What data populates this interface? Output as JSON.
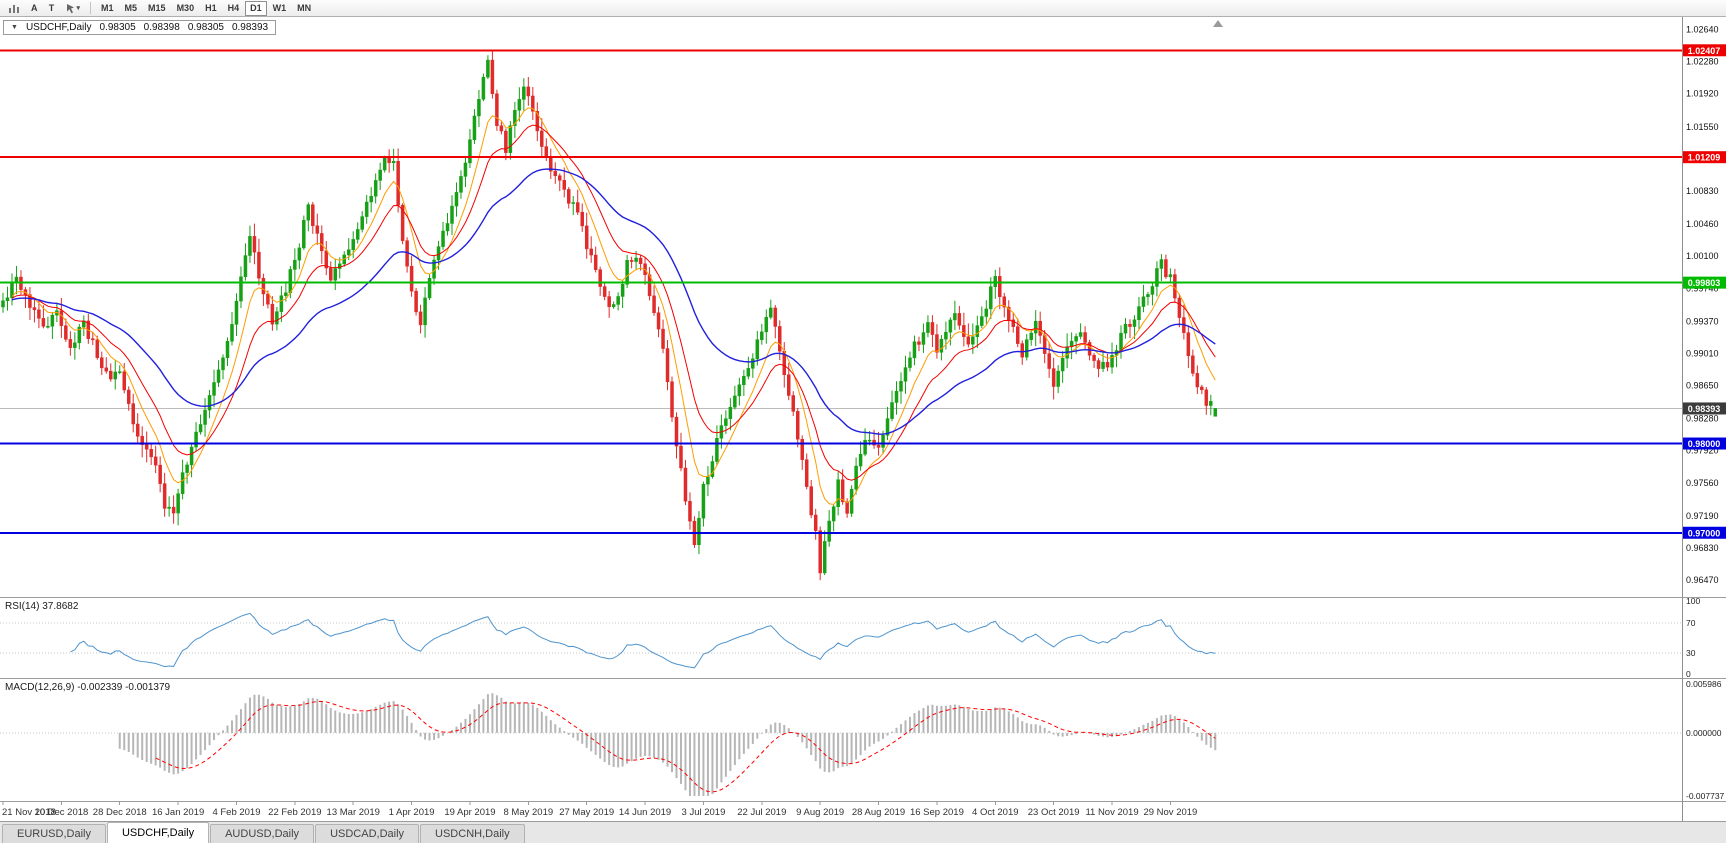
{
  "toolbar": {
    "a_label": "A",
    "t_label": "T",
    "timeframes": [
      "M1",
      "M5",
      "M15",
      "M30",
      "H1",
      "H4",
      "D1",
      "W1",
      "MN"
    ],
    "active_timeframe": "D1"
  },
  "chart_header": {
    "arrow": "▼",
    "symbol": "USDCHF,Daily",
    "open": "0.98305",
    "high": "0.98398",
    "low": "0.98305",
    "close": "0.98393"
  },
  "colors": {
    "candle_up": "#16a016",
    "candle_down": "#e02b2b",
    "rsi_line": "#4f94cd",
    "macd_hist": "#b6b6b6",
    "macd_signal": "#ff0000",
    "current_price_bg": "#3b3b3b",
    "separator": "#9c9c9c"
  },
  "price_axis": [
    "1.02640",
    "1.02280",
    "1.01920",
    "1.01550",
    "1.01190",
    "1.00830",
    "1.00460",
    "1.00100",
    "0.99740",
    "0.99370",
    "0.99010",
    "0.98650",
    "0.98280",
    "0.97920",
    "0.97560",
    "0.97190",
    "0.96830",
    "0.96470"
  ],
  "hlines": [
    {
      "price": 1.02407,
      "label": "1.02407",
      "color": "#ee0000",
      "width": 2
    },
    {
      "price": 1.01209,
      "label": "1.01209",
      "color": "#ee0000",
      "width": 2
    },
    {
      "price": 0.99803,
      "label": "0.99803",
      "color": "#00bb00",
      "width": 2
    },
    {
      "price": 0.98,
      "label": "0.98000",
      "color": "#0000e0",
      "width": 2
    },
    {
      "price": 0.97,
      "label": "0.97000",
      "color": "#0000e0",
      "width": 2
    }
  ],
  "current_price": {
    "value": 0.98393,
    "label": "0.98393"
  },
  "rsi": {
    "label": "RSI(14) 37.8682",
    "period": "14",
    "value": "37.8682",
    "axis": [
      "100",
      "70",
      "30",
      "0"
    ],
    "levels": [
      70,
      30
    ]
  },
  "macd": {
    "label": "MACD(12,26,9) -0.002339 -0.001379",
    "main_value": "-0.002339",
    "signal_value": "-0.001379",
    "axis_max": "0.005986",
    "axis_zero": "0.000000",
    "axis_min": "-0.007737"
  },
  "time_axis": [
    "21 Nov 2018",
    "10 Dec 2018",
    "28 Dec 2018",
    "16 Jan 2019",
    "4 Feb 2019",
    "22 Feb 2019",
    "13 Mar 2019",
    "1 Apr 2019",
    "19 Apr 2019",
    "8 May 2019",
    "27 May 2019",
    "14 Jun 2019",
    "3 Jul 2019",
    "22 Jul 2019",
    "9 Aug 2019",
    "28 Aug 2019",
    "16 Sep 2019",
    "4 Oct 2019",
    "23 Oct 2019",
    "11 Nov 2019",
    "29 Nov 2019"
  ],
  "tabs": [
    {
      "label": "EURUSD,Daily",
      "active": false
    },
    {
      "label": "USDCHF,Daily",
      "active": true
    },
    {
      "label": "AUDUSD,Daily",
      "active": false
    },
    {
      "label": "USDCAD,Daily",
      "active": false
    },
    {
      "label": "USDCNH,Daily",
      "active": false
    }
  ],
  "chart_data": {
    "type": "candlestick",
    "symbol": "USDCHF",
    "timeframe": "Daily",
    "bars": 271,
    "bar_spacing": 4.49,
    "bars_per_label": 13,
    "price_top": 1.0278,
    "price_bottom": 0.9628,
    "macd_scale_max": 0.005986,
    "macd_scale_min": -0.007737,
    "last_candle": {
      "open": 0.98305,
      "high": 0.98398,
      "low": 0.98305,
      "close": 0.98393
    },
    "ma": [
      {
        "period": 8,
        "color": "#ff9c00",
        "width": 1
      },
      {
        "period": 16,
        "color": "#f40000",
        "width": 1
      },
      {
        "period": 40,
        "color": "#2020dd",
        "width": 1.4
      }
    ],
    "close_anchors": [
      [
        0,
        0.996
      ],
      [
        3,
        0.9985
      ],
      [
        6,
        0.995
      ],
      [
        9,
        0.993
      ],
      [
        12,
        0.9945
      ],
      [
        15,
        0.9905
      ],
      [
        18,
        0.9935
      ],
      [
        21,
        0.99
      ],
      [
        24,
        0.987
      ],
      [
        26,
        0.988
      ],
      [
        28,
        0.984
      ],
      [
        31,
        0.98
      ],
      [
        34,
        0.977
      ],
      [
        36,
        0.973
      ],
      [
        38,
        0.9717
      ],
      [
        40,
        0.9765
      ],
      [
        43,
        0.981
      ],
      [
        46,
        0.9855
      ],
      [
        49,
        0.99
      ],
      [
        52,
        0.996
      ],
      [
        55,
        1.003
      ],
      [
        57,
        0.999
      ],
      [
        60,
        0.9935
      ],
      [
        63,
        0.9975
      ],
      [
        66,
        1.002
      ],
      [
        68,
        1.007
      ],
      [
        70,
        1.003
      ],
      [
        73,
        0.9985
      ],
      [
        76,
        1.001
      ],
      [
        79,
        1.0045
      ],
      [
        82,
        1.008
      ],
      [
        85,
        1.012
      ],
      [
        87,
        1.011
      ],
      [
        89,
        1.003
      ],
      [
        91,
        0.9965
      ],
      [
        93,
        0.993
      ],
      [
        95,
        0.9985
      ],
      [
        98,
        1.0035
      ],
      [
        101,
        1.008
      ],
      [
        104,
        1.014
      ],
      [
        106,
        1.0185
      ],
      [
        108,
        1.0225
      ],
      [
        110,
        1.016
      ],
      [
        112,
        1.013
      ],
      [
        114,
        1.0175
      ],
      [
        116,
        1.0205
      ],
      [
        119,
        1.015
      ],
      [
        122,
        1.0105
      ],
      [
        125,
        1.0085
      ],
      [
        128,
        1.0055
      ],
      [
        130,
        1.002
      ],
      [
        133,
        0.9975
      ],
      [
        136,
        0.995
      ],
      [
        139,
        1.0
      ],
      [
        141,
        1.001
      ],
      [
        144,
        0.997
      ],
      [
        146,
        0.993
      ],
      [
        148,
        0.987
      ],
      [
        150,
        0.98
      ],
      [
        152,
        0.9735
      ],
      [
        154,
        0.9693
      ],
      [
        156,
        0.975
      ],
      [
        159,
        0.98
      ],
      [
        162,
        0.9845
      ],
      [
        165,
        0.987
      ],
      [
        167,
        0.99
      ],
      [
        169,
        0.993
      ],
      [
        171,
        0.995
      ],
      [
        173,
        0.99
      ],
      [
        175,
        0.9855
      ],
      [
        177,
        0.9805
      ],
      [
        179,
        0.975
      ],
      [
        181,
        0.97
      ],
      [
        182,
        0.9659
      ],
      [
        184,
        0.9715
      ],
      [
        186,
        0.9755
      ],
      [
        188,
        0.972
      ],
      [
        190,
        0.977
      ],
      [
        192,
        0.981
      ],
      [
        195,
        0.979
      ],
      [
        198,
        0.984
      ],
      [
        202,
        0.99
      ],
      [
        206,
        0.9935
      ],
      [
        208,
        0.99
      ],
      [
        212,
        0.995
      ],
      [
        215,
        0.9905
      ],
      [
        218,
        0.994
      ],
      [
        221,
        0.9985
      ],
      [
        224,
        0.994
      ],
      [
        227,
        0.99
      ],
      [
        230,
        0.9935
      ],
      [
        233,
        0.989
      ],
      [
        234,
        0.9865
      ],
      [
        237,
        0.9905
      ],
      [
        240,
        0.993
      ],
      [
        243,
        0.989
      ],
      [
        246,
        0.989
      ],
      [
        250,
        0.993
      ],
      [
        254,
        0.996
      ],
      [
        258,
        1.0
      ],
      [
        260,
        0.9985
      ],
      [
        262,
        0.994
      ],
      [
        264,
        0.99
      ],
      [
        266,
        0.9865
      ],
      [
        268,
        0.9845
      ],
      [
        270,
        0.98393
      ]
    ]
  }
}
